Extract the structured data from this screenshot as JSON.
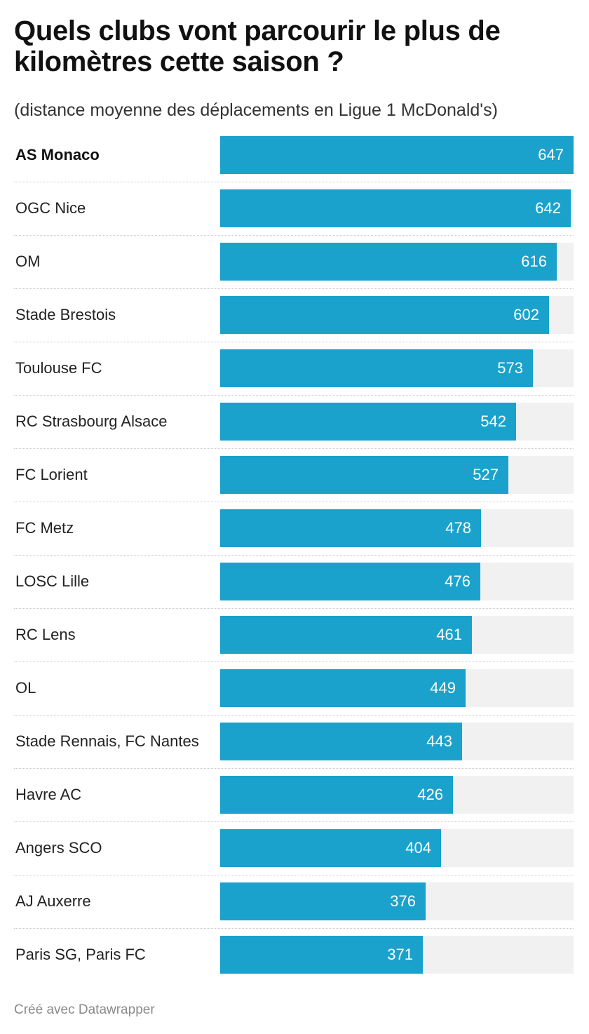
{
  "title": "Quels clubs vont parcourir le plus de kilomètres cette saison ?",
  "subtitle": "(distance moyenne des déplacements en Ligue 1 McDonald's)",
  "footer": "Créé avec Datawrapper",
  "colors": {
    "bar": "#1aa2cc",
    "track": "#f1f1f1",
    "value_text": "#ffffff"
  },
  "chart_data": {
    "type": "bar",
    "orientation": "horizontal",
    "title": "Quels clubs vont parcourir le plus de kilomètres cette saison ?",
    "subtitle": "(distance moyenne des déplacements en Ligue 1 McDonald's)",
    "xlabel": "",
    "ylabel": "",
    "xlim": [
      0,
      647
    ],
    "grid": false,
    "highlighted": [
      "AS Monaco"
    ],
    "categories": [
      "AS Monaco",
      "OGC Nice",
      "OM",
      "Stade Brestois",
      "Toulouse FC",
      "RC Strasbourg Alsace",
      "FC Lorient",
      "FC Metz",
      "LOSC Lille",
      "RC Lens",
      "OL",
      "Stade Rennais, FC Nantes",
      "Havre AC",
      "Angers SCO",
      "AJ Auxerre",
      "Paris SG, Paris FC"
    ],
    "values": [
      647,
      642,
      616,
      602,
      573,
      542,
      527,
      478,
      476,
      461,
      449,
      443,
      426,
      404,
      376,
      371
    ]
  }
}
